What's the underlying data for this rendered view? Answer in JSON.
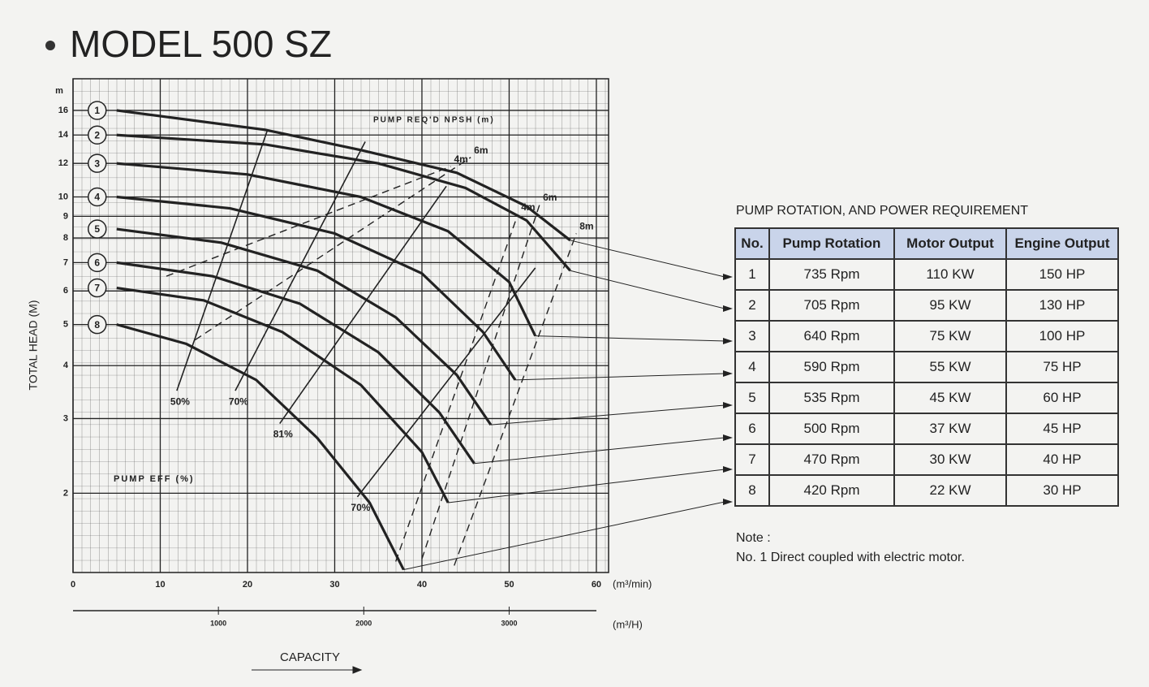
{
  "title": "MODEL 500 SZ",
  "chart_data": {
    "type": "line",
    "log_y": true,
    "ylabel": "TOTAL HEAD (M)",
    "yunit": "m",
    "xunit": "(m³/min)",
    "x2unit": "(m³/H)",
    "xlabel": "CAPACITY",
    "xlim": [
      0,
      61.4
    ],
    "xticks": [
      0,
      10,
      20,
      30,
      40,
      50,
      60
    ],
    "x2lim": [
      0,
      3684
    ],
    "x2ticks": [
      1000,
      2000,
      3000
    ],
    "ylim": [
      1.3,
      19
    ],
    "yticks": [
      2,
      3,
      4,
      5,
      6,
      7,
      8,
      9,
      10,
      12,
      14,
      16
    ],
    "grid": true,
    "color": "#222222",
    "series": [
      {
        "name": "1",
        "x": [
          5,
          22,
          33,
          44,
          52,
          57
        ],
        "values": [
          16,
          14.4,
          12.9,
          11.4,
          9.5,
          7.9
        ]
      },
      {
        "name": "2",
        "x": [
          5,
          22,
          35,
          45,
          52,
          57
        ],
        "values": [
          14,
          13.3,
          12,
          10.5,
          8.8,
          6.7
        ]
      },
      {
        "name": "3",
        "x": [
          5,
          20,
          33,
          43,
          50,
          53
        ],
        "values": [
          12,
          11.3,
          10,
          8.3,
          6.3,
          4.7
        ]
      },
      {
        "name": "4",
        "x": [
          5,
          18,
          30,
          40,
          47,
          50.7
        ],
        "values": [
          10,
          9.4,
          8.2,
          6.6,
          4.8,
          3.7
        ]
      },
      {
        "name": "5",
        "x": [
          5,
          17,
          28,
          37,
          44,
          47.9
        ],
        "values": [
          8.4,
          7.8,
          6.7,
          5.2,
          3.8,
          2.9
        ]
      },
      {
        "name": "6",
        "x": [
          5,
          16,
          26,
          35,
          42,
          46
        ],
        "values": [
          7,
          6.5,
          5.6,
          4.3,
          3.1,
          2.35
        ]
      },
      {
        "name": "7",
        "x": [
          5,
          15,
          24,
          33,
          40,
          43
        ],
        "values": [
          6.1,
          5.7,
          4.8,
          3.6,
          2.5,
          1.9
        ]
      },
      {
        "name": "8",
        "x": [
          5,
          13,
          21,
          28,
          34,
          37.9
        ],
        "values": [
          5,
          4.5,
          3.7,
          2.7,
          1.9,
          1.32
        ]
      }
    ],
    "efficiency_title": "PUMP EFF (%)",
    "efficiency_lines": [
      {
        "label": "50%",
        "x": [
          11.9,
          22.3
        ],
        "values": [
          3.49,
          14.4
        ]
      },
      {
        "label": "70%",
        "x": [
          18.6,
          33.5
        ],
        "values": [
          3.49,
          13.5
        ]
      },
      {
        "label": "81%",
        "x": [
          23.7,
          42.8
        ],
        "values": [
          2.92,
          10.6
        ]
      },
      {
        "label": "70%",
        "x": [
          32.6,
          53
        ],
        "values": [
          1.96,
          6.8
        ]
      }
    ],
    "npsh_title": "PUMP REQ'D NPSH (m)",
    "npsh_lines": [
      {
        "label": "4m",
        "x": [
          10.7,
          43.3
        ],
        "values": [
          6.5,
          11.8
        ]
      },
      {
        "label": "6m",
        "x": [
          14,
          45.6
        ],
        "values": [
          4.6,
          12.4
        ]
      },
      {
        "label": "6m",
        "x": [
          40,
          53.5
        ],
        "values": [
          1.4,
          9.6
        ]
      },
      {
        "label": "8m",
        "x": [
          43.7,
          57.7
        ],
        "values": [
          1.35,
          8.2
        ]
      },
      {
        "label": "4m",
        "x": [
          37,
          51
        ],
        "values": [
          1.38,
          9.1
        ]
      }
    ]
  },
  "table": {
    "title": "PUMP ROTATION, AND POWER REQUIREMENT",
    "header": [
      "No.",
      "Pump Rotation",
      "Motor Output",
      "Engine Output"
    ],
    "rows": [
      [
        "1",
        "735 Rpm",
        "110  KW",
        "150  HP"
      ],
      [
        "2",
        "705 Rpm",
        "95  KW",
        "130  HP"
      ],
      [
        "3",
        "640 Rpm",
        "75  KW",
        "100  HP"
      ],
      [
        "4",
        "590 Rpm",
        "55  KW",
        "75  HP"
      ],
      [
        "5",
        "535 Rpm",
        "45  KW",
        "60  HP"
      ],
      [
        "6",
        "500 Rpm",
        "37  KW",
        "45  HP"
      ],
      [
        "7",
        "470 Rpm",
        "30  KW",
        "40  HP"
      ],
      [
        "8",
        "420 Rpm",
        "22  KW",
        "30  HP"
      ]
    ],
    "note": [
      "Note :",
      "No. 1 Direct coupled with electric motor."
    ]
  }
}
